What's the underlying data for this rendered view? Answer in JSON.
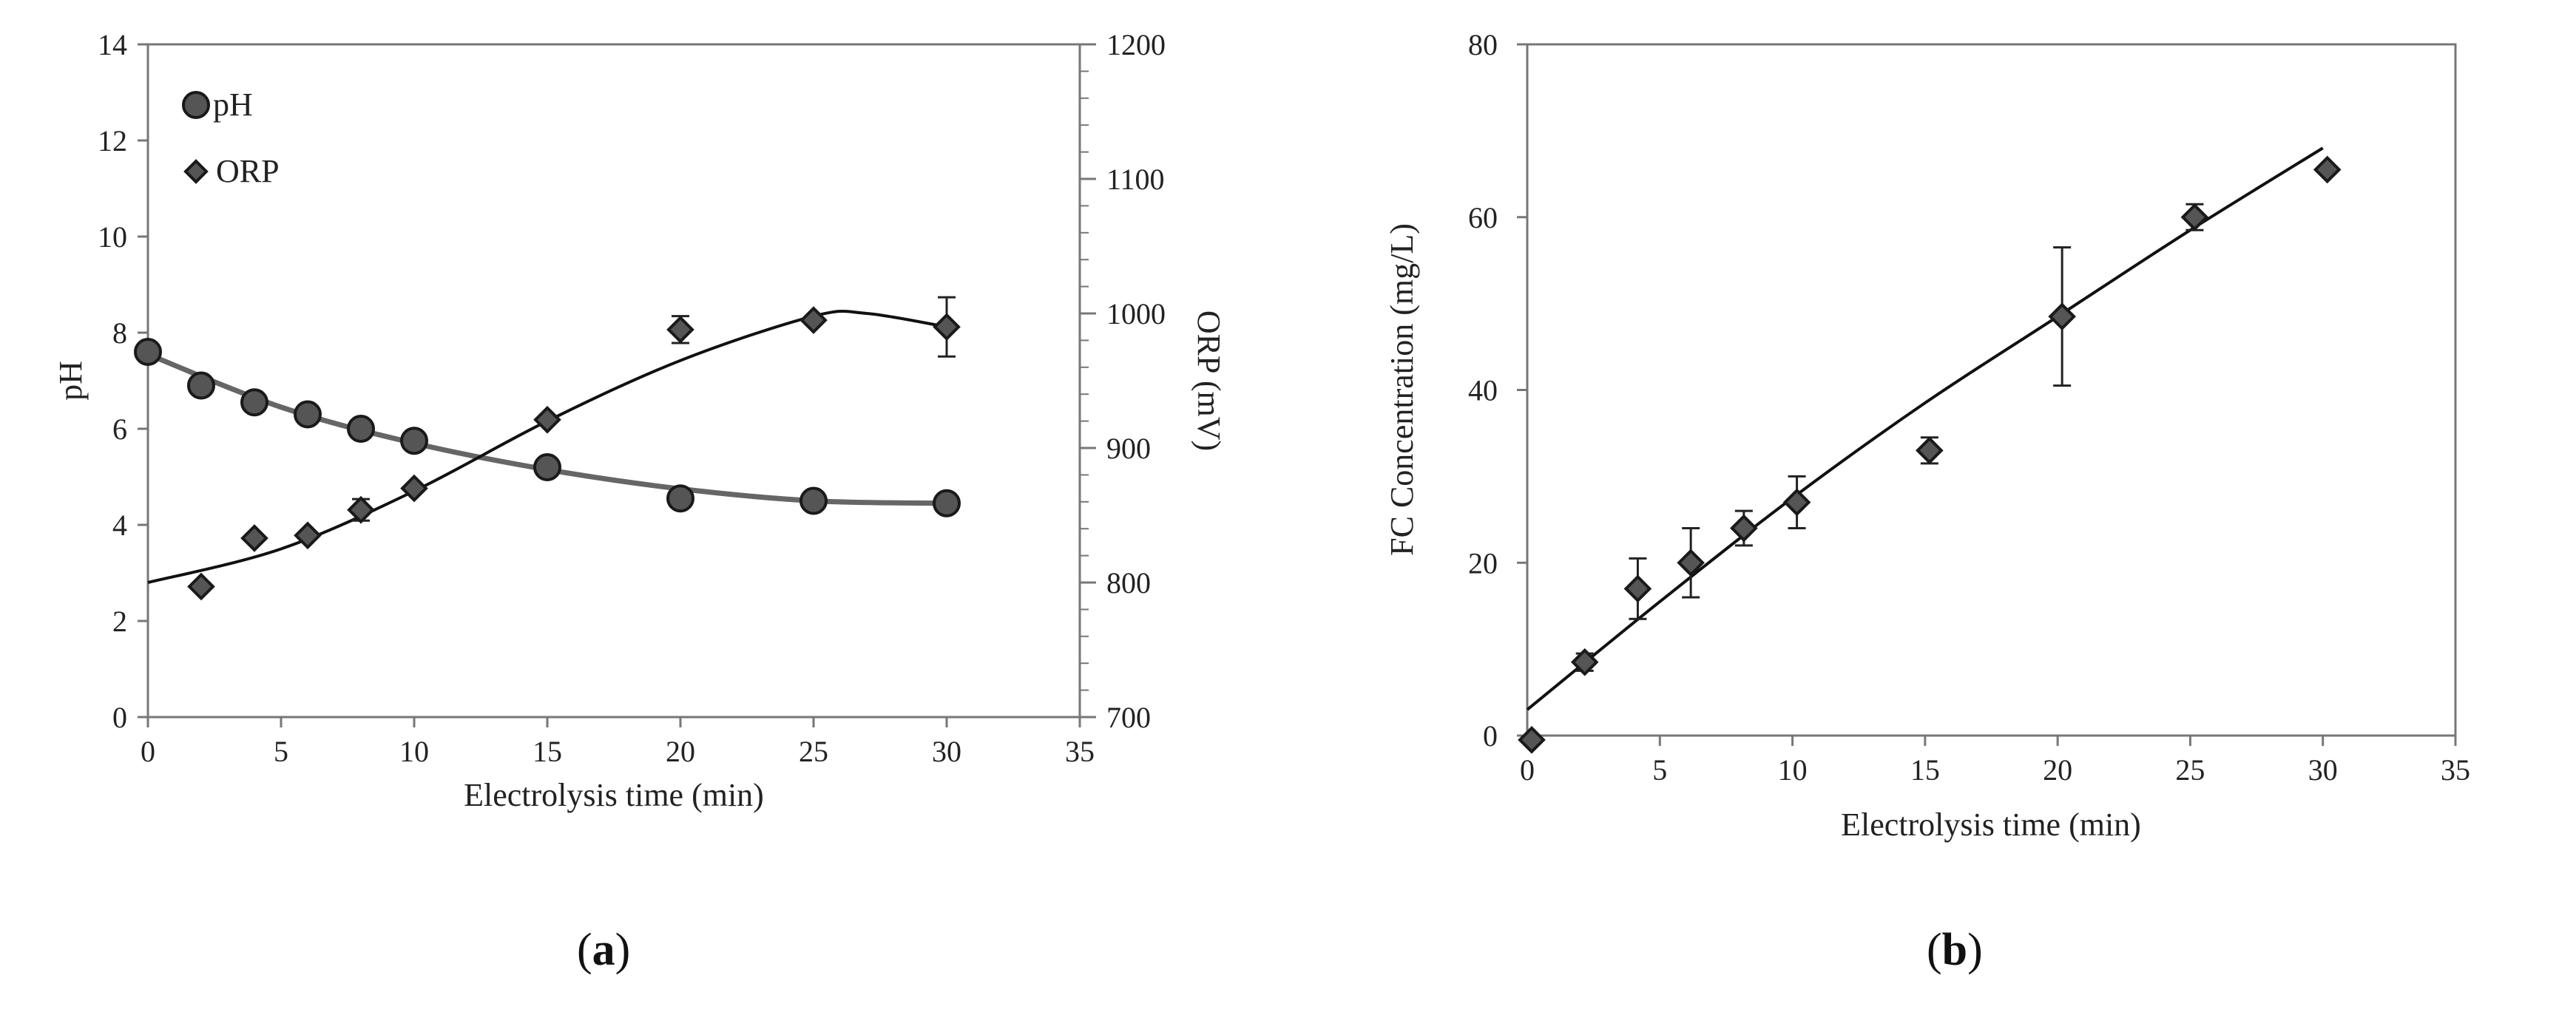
{
  "chart_data": [
    {
      "type": "scatter",
      "panel_label": "a",
      "xlabel": "Electrolysis time (min)",
      "ylabel": "pH",
      "y2label": "ORP (mV)",
      "xlim": [
        0,
        35
      ],
      "ylim": [
        0,
        14
      ],
      "y2lim": [
        700,
        1200
      ],
      "xticks": [
        "0",
        "5",
        "10",
        "15",
        "20",
        "25",
        "30",
        "35"
      ],
      "yticks": [
        "0",
        "2",
        "4",
        "6",
        "8",
        "10",
        "12",
        "14"
      ],
      "y2ticks": [
        "700",
        "800",
        "900",
        "1000",
        "1100",
        "1200"
      ],
      "legend_position": "top-left",
      "series": [
        {
          "name": "pH",
          "marker": "circle",
          "axis": "left",
          "x": [
            0,
            2,
            4,
            6,
            8,
            10,
            15,
            20,
            25,
            30
          ],
          "values": [
            7.6,
            6.9,
            6.55,
            6.3,
            6.0,
            5.75,
            5.2,
            4.55,
            4.5,
            4.45
          ],
          "trend": [
            [
              0,
              7.55
            ],
            [
              5,
              6.45
            ],
            [
              10,
              5.7
            ],
            [
              15,
              5.15
            ],
            [
              20,
              4.75
            ],
            [
              25,
              4.5
            ],
            [
              30,
              4.45
            ]
          ]
        },
        {
          "name": "ORP",
          "marker": "diamond",
          "axis": "right",
          "x": [
            2,
            4,
            6,
            8,
            10,
            15,
            20,
            25,
            30
          ],
          "values": [
            797,
            833,
            835,
            854,
            870,
            921,
            988,
            995,
            990
          ],
          "errors": [
            0,
            0,
            0,
            8,
            0,
            0,
            10,
            0,
            22
          ],
          "trend": [
            [
              0,
              800
            ],
            [
              5,
              825
            ],
            [
              10,
              868
            ],
            [
              15,
              920
            ],
            [
              20,
              965
            ],
            [
              25,
              998
            ],
            [
              27,
              1000
            ],
            [
              30,
              990
            ]
          ]
        }
      ]
    },
    {
      "type": "scatter",
      "panel_label": "b",
      "xlabel": "Electrolysis time (min)",
      "ylabel": "FC Concentration (mg/L)",
      "xlim": [
        0,
        35
      ],
      "ylim": [
        0,
        80
      ],
      "xticks": [
        "0",
        "5",
        "10",
        "15",
        "20",
        "25",
        "30",
        "35"
      ],
      "yticks": [
        "0",
        "20",
        "40",
        "60",
        "80"
      ],
      "series": [
        {
          "name": "FC",
          "marker": "diamond",
          "x": [
            0,
            2,
            4,
            6,
            8,
            10,
            15,
            20,
            25,
            30
          ],
          "values": [
            -0.5,
            8.5,
            17,
            20,
            24,
            27,
            33,
            48.5,
            60,
            65.5
          ],
          "errors": [
            0,
            1,
            3.5,
            4,
            2,
            3,
            1.5,
            8,
            1.5,
            0
          ],
          "trend": [
            [
              0,
              3
            ],
            [
              5,
              15.5
            ],
            [
              10,
              27.5
            ],
            [
              15,
              38.5
            ],
            [
              20,
              48.5
            ],
            [
              25,
              58.5
            ],
            [
              30,
              68
            ]
          ]
        }
      ]
    }
  ]
}
